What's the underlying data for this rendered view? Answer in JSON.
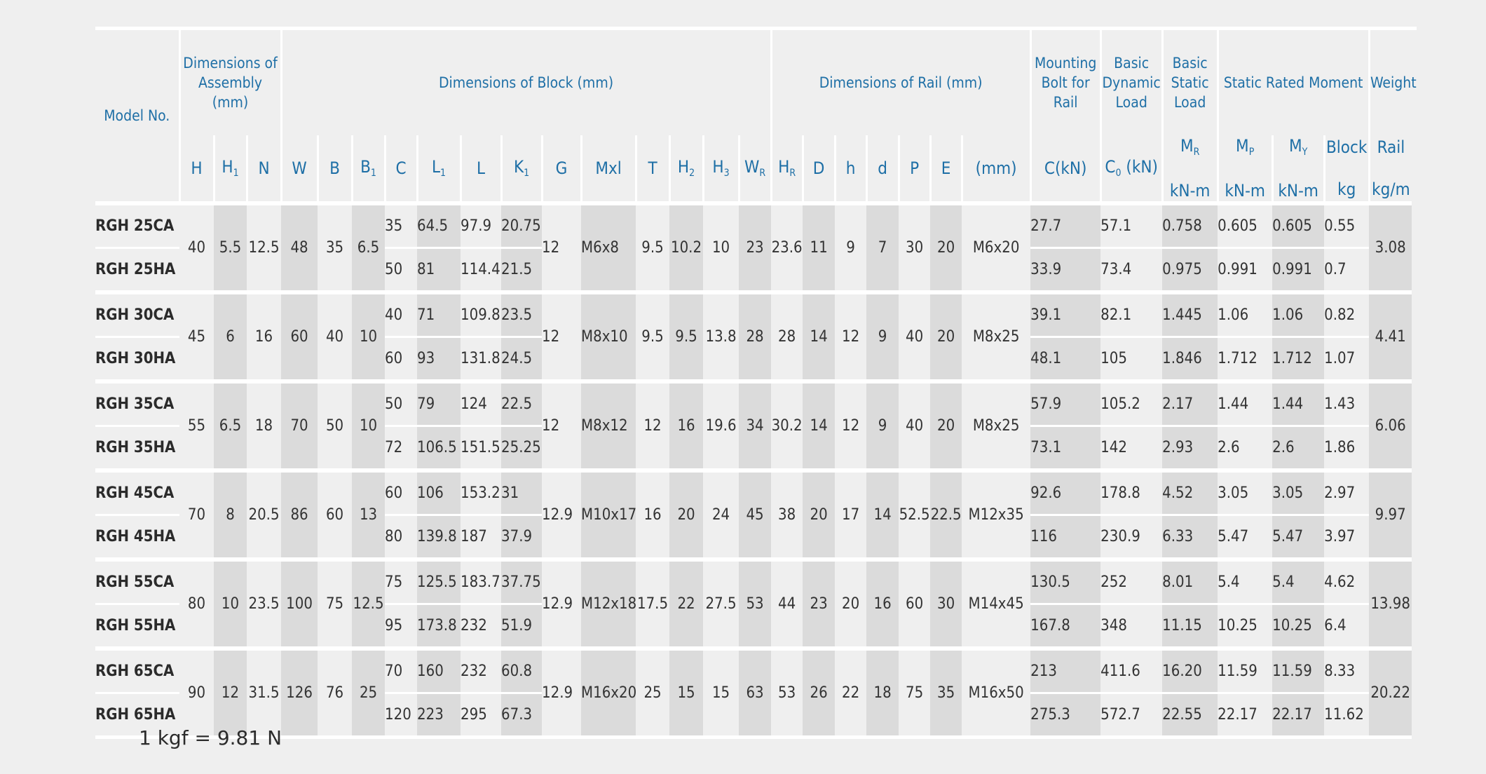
{
  "headers": {
    "model": "Model No.",
    "assembly": "Dimensions of Assembly (mm)",
    "block": "Dimensions of Block (mm)",
    "rail": "Dimensions of Rail (mm)",
    "bolt": "Mounting Bolt for Rail",
    "dynamic": "Basic Dynamic Load",
    "static": "Basic Static Load",
    "moment": "Static Rated Moment",
    "weight": "Weight"
  },
  "subheaders": {
    "H": "H",
    "H1": "H",
    "N": "N",
    "W": "W",
    "B": "B",
    "B1": "B",
    "C": "C",
    "L1": "L",
    "L": "L",
    "K1": "K",
    "G": "G",
    "Mxl": "Mxl",
    "T": "T",
    "H2": "H",
    "H3": "H",
    "WR": "W",
    "HR": "H",
    "D": "D",
    "h": "h",
    "d": "d",
    "P": "P",
    "E": "E",
    "bolt_unit": "(mm)",
    "C_kN": "C(kN)",
    "C0": "C",
    "C0_unit": "(kN)",
    "MR": "M",
    "MP": "M",
    "MY": "M",
    "moment_unit": "kN-m",
    "block": "Block",
    "block_unit": "kg",
    "rail": "Rail",
    "rail_unit": "kg/m",
    "sub1": "1",
    "sub2": "2",
    "sub3": "3",
    "subR": "R",
    "subP": "P",
    "subY": "Y",
    "sub0": "0"
  },
  "groups": [
    {
      "H": "40",
      "H1": "5.5",
      "N": "12.5",
      "W": "48",
      "B": "35",
      "B1": "6.5",
      "G": "12",
      "Mxl": "M6x8",
      "T": "9.5",
      "H2": "10.2",
      "H3": "10",
      "WR": "23",
      "HR": "23.6",
      "D": "11",
      "h": "9",
      "d": "7",
      "P": "30",
      "E": "20",
      "bolt": "M6x20",
      "rail": "3.08",
      "rows": [
        {
          "model": "RGH 25CA",
          "C": "35",
          "L1": "64.5",
          "L": "97.9",
          "K1": "20.75",
          "Cdyn": "27.7",
          "C0": "57.1",
          "MR": "0.758",
          "MP": "0.605",
          "MY": "0.605",
          "block": "0.55"
        },
        {
          "model": "RGH 25HA",
          "C": "50",
          "L1": "81",
          "L": "114.4",
          "K1": "21.5",
          "Cdyn": "33.9",
          "C0": "73.4",
          "MR": "0.975",
          "MP": "0.991",
          "MY": "0.991",
          "block": "0.7"
        }
      ]
    },
    {
      "H": "45",
      "H1": "6",
      "N": "16",
      "W": "60",
      "B": "40",
      "B1": "10",
      "G": "12",
      "Mxl": "M8x10",
      "T": "9.5",
      "H2": "9.5",
      "H3": "13.8",
      "WR": "28",
      "HR": "28",
      "D": "14",
      "h": "12",
      "d": "9",
      "P": "40",
      "E": "20",
      "bolt": "M8x25",
      "rail": "4.41",
      "rows": [
        {
          "model": "RGH 30CA",
          "C": "40",
          "L1": "71",
          "L": "109.8",
          "K1": "23.5",
          "Cdyn": "39.1",
          "C0": "82.1",
          "MR": "1.445",
          "MP": "1.06",
          "MY": "1.06",
          "block": "0.82"
        },
        {
          "model": "RGH 30HA",
          "C": "60",
          "L1": "93",
          "L": "131.8",
          "K1": "24.5",
          "Cdyn": "48.1",
          "C0": "105",
          "MR": "1.846",
          "MP": "1.712",
          "MY": "1.712",
          "block": "1.07"
        }
      ]
    },
    {
      "H": "55",
      "H1": "6.5",
      "N": "18",
      "W": "70",
      "B": "50",
      "B1": "10",
      "G": "12",
      "Mxl": "M8x12",
      "T": "12",
      "H2": "16",
      "H3": "19.6",
      "WR": "34",
      "HR": "30.2",
      "D": "14",
      "h": "12",
      "d": "9",
      "P": "40",
      "E": "20",
      "bolt": "M8x25",
      "rail": "6.06",
      "rows": [
        {
          "model": "RGH 35CA",
          "C": "50",
          "L1": "79",
          "L": "124",
          "K1": "22.5",
          "Cdyn": "57.9",
          "C0": "105.2",
          "MR": "2.17",
          "MP": "1.44",
          "MY": "1.44",
          "block": "1.43"
        },
        {
          "model": "RGH 35HA",
          "C": "72",
          "L1": "106.5",
          "L": "151.5",
          "K1": "25.25",
          "Cdyn": "73.1",
          "C0": "142",
          "MR": "2.93",
          "MP": "2.6",
          "MY": "2.6",
          "block": "1.86"
        }
      ]
    },
    {
      "H": "70",
      "H1": "8",
      "N": "20.5",
      "W": "86",
      "B": "60",
      "B1": "13",
      "G": "12.9",
      "Mxl": "M10x17",
      "T": "16",
      "H2": "20",
      "H3": "24",
      "WR": "45",
      "HR": "38",
      "D": "20",
      "h": "17",
      "d": "14",
      "P": "52.5",
      "E": "22.5",
      "bolt": "M12x35",
      "rail": "9.97",
      "rows": [
        {
          "model": "RGH 45CA",
          "C": "60",
          "L1": "106",
          "L": "153.2",
          "K1": "31",
          "Cdyn": "92.6",
          "C0": "178.8",
          "MR": "4.52",
          "MP": "3.05",
          "MY": "3.05",
          "block": "2.97"
        },
        {
          "model": "RGH 45HA",
          "C": "80",
          "L1": "139.8",
          "L": "187",
          "K1": "37.9",
          "Cdyn": "116",
          "C0": "230.9",
          "MR": "6.33",
          "MP": "5.47",
          "MY": "5.47",
          "block": "3.97"
        }
      ]
    },
    {
      "H": "80",
      "H1": "10",
      "N": "23.5",
      "W": "100",
      "B": "75",
      "B1": "12.5",
      "G": "12.9",
      "Mxl": "M12x18",
      "T": "17.5",
      "H2": "22",
      "H3": "27.5",
      "WR": "53",
      "HR": "44",
      "D": "23",
      "h": "20",
      "d": "16",
      "P": "60",
      "E": "30",
      "bolt": "M14x45",
      "rail": "13.98",
      "rows": [
        {
          "model": "RGH 55CA",
          "C": "75",
          "L1": "125.5",
          "L": "183.7",
          "K1": "37.75",
          "Cdyn": "130.5",
          "C0": "252",
          "MR": "8.01",
          "MP": "5.4",
          "MY": "5.4",
          "block": "4.62"
        },
        {
          "model": "RGH 55HA",
          "C": "95",
          "L1": "173.8",
          "L": "232",
          "K1": "51.9",
          "Cdyn": "167.8",
          "C0": "348",
          "MR": "11.15",
          "MP": "10.25",
          "MY": "10.25",
          "block": "6.4"
        }
      ]
    },
    {
      "H": "90",
      "H1": "12",
      "N": "31.5",
      "W": "126",
      "B": "76",
      "B1": "25",
      "G": "12.9",
      "Mxl": "M16x20",
      "T": "25",
      "H2": "15",
      "H3": "15",
      "WR": "63",
      "HR": "53",
      "D": "26",
      "h": "22",
      "d": "18",
      "P": "75",
      "E": "35",
      "bolt": "M16x50",
      "rail": "20.22",
      "rows": [
        {
          "model": "RGH 65CA",
          "C": "70",
          "L1": "160",
          "L": "232",
          "K1": "60.8",
          "Cdyn": "213",
          "C0": "411.6",
          "MR": "16.20",
          "MP": "11.59",
          "MY": "11.59",
          "block": "8.33"
        },
        {
          "model": "RGH 65HA",
          "C": "120",
          "L1": "223",
          "L": "295",
          "K1": "67.3",
          "Cdyn": "275.3",
          "C0": "572.7",
          "MR": "22.55",
          "MP": "22.17",
          "MY": "22.17",
          "block": "11.62"
        }
      ]
    }
  ],
  "footnote": "1 kgf = 9.81 N"
}
